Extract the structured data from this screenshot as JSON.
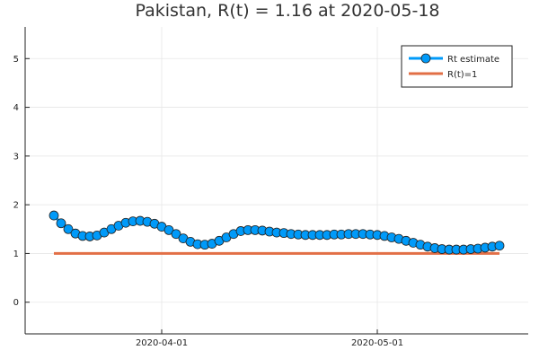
{
  "chart_data": {
    "type": "line",
    "title": "Pakistan, R(t) = 1.16 at 2020-05-18",
    "xlabel": "",
    "ylabel": "",
    "x_start": "2020-03-17",
    "x_end": "2020-05-18",
    "xlim": [
      "2020-03-13",
      "2020-05-22"
    ],
    "ylim": [
      -0.65,
      5.65
    ],
    "yticks": [
      0,
      1,
      2,
      3,
      4,
      5
    ],
    "xticks": [
      {
        "date": "2020-04-01",
        "label": "2020-04-01"
      },
      {
        "date": "2020-05-01",
        "label": "2020-05-01"
      }
    ],
    "grid": true,
    "legend_position": "top-right",
    "series": [
      {
        "name": "Rt estimate",
        "color": "#009af9",
        "style": "line-with-markers",
        "x": [
          "2020-03-17",
          "2020-03-18",
          "2020-03-19",
          "2020-03-20",
          "2020-03-21",
          "2020-03-22",
          "2020-03-23",
          "2020-03-24",
          "2020-03-25",
          "2020-03-26",
          "2020-03-27",
          "2020-03-28",
          "2020-03-29",
          "2020-03-30",
          "2020-03-31",
          "2020-04-01",
          "2020-04-02",
          "2020-04-03",
          "2020-04-04",
          "2020-04-05",
          "2020-04-06",
          "2020-04-07",
          "2020-04-08",
          "2020-04-09",
          "2020-04-10",
          "2020-04-11",
          "2020-04-12",
          "2020-04-13",
          "2020-04-14",
          "2020-04-15",
          "2020-04-16",
          "2020-04-17",
          "2020-04-18",
          "2020-04-19",
          "2020-04-20",
          "2020-04-21",
          "2020-04-22",
          "2020-04-23",
          "2020-04-24",
          "2020-04-25",
          "2020-04-26",
          "2020-04-27",
          "2020-04-28",
          "2020-04-29",
          "2020-04-30",
          "2020-05-01",
          "2020-05-02",
          "2020-05-03",
          "2020-05-04",
          "2020-05-05",
          "2020-05-06",
          "2020-05-07",
          "2020-05-08",
          "2020-05-09",
          "2020-05-10",
          "2020-05-11",
          "2020-05-12",
          "2020-05-13",
          "2020-05-14",
          "2020-05-15",
          "2020-05-16",
          "2020-05-17",
          "2020-05-18"
        ],
        "values": [
          1.78,
          1.62,
          1.5,
          1.41,
          1.36,
          1.35,
          1.37,
          1.43,
          1.5,
          1.57,
          1.63,
          1.66,
          1.67,
          1.65,
          1.61,
          1.55,
          1.48,
          1.4,
          1.31,
          1.24,
          1.19,
          1.18,
          1.2,
          1.26,
          1.33,
          1.4,
          1.46,
          1.48,
          1.48,
          1.47,
          1.45,
          1.43,
          1.42,
          1.4,
          1.39,
          1.38,
          1.38,
          1.38,
          1.38,
          1.39,
          1.39,
          1.4,
          1.4,
          1.4,
          1.39,
          1.38,
          1.36,
          1.33,
          1.3,
          1.26,
          1.22,
          1.18,
          1.14,
          1.11,
          1.09,
          1.08,
          1.08,
          1.08,
          1.09,
          1.1,
          1.12,
          1.14,
          1.16
        ]
      },
      {
        "name": "R(t)=1",
        "color": "#e26f46",
        "style": "line",
        "x": [
          "2020-03-17",
          "2020-05-18"
        ],
        "values": [
          1,
          1
        ]
      }
    ]
  }
}
